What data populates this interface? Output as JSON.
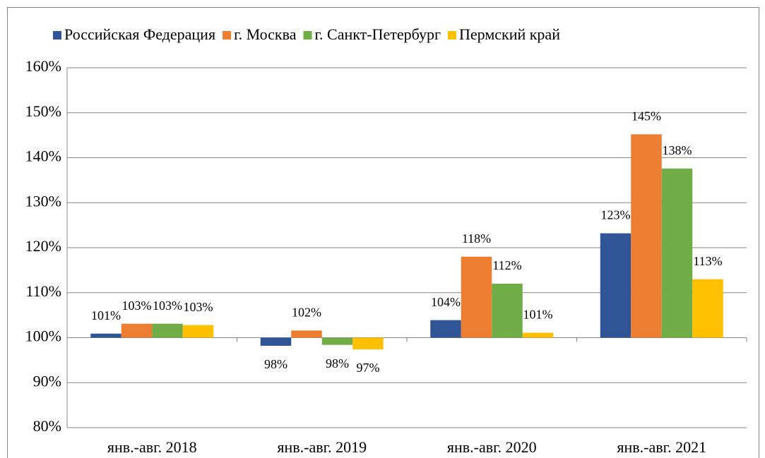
{
  "chart_data": {
    "type": "bar",
    "categories": [
      "янв.-авг. 2018",
      "янв.-авг. 2019",
      "янв.-авг. 2020",
      "янв.-авг. 2021"
    ],
    "series": [
      {
        "name": "Российская Федерация",
        "color": "#2f5597",
        "values": [
          100.9,
          98.2,
          103.9,
          123.2
        ],
        "value_labels": [
          "101%",
          "98%",
          "104%",
          "123%"
        ]
      },
      {
        "name": "г. Москва",
        "color": "#ed7d31",
        "values": [
          103.1,
          101.6,
          118.0,
          145.2
        ],
        "value_labels": [
          "103%",
          "102%",
          "118%",
          "145%"
        ]
      },
      {
        "name": "г. Санкт-Петербург",
        "color": "#70ad47",
        "values": [
          103.1,
          98.4,
          112.0,
          137.6
        ],
        "value_labels": [
          "103%",
          "98%",
          "112%",
          "138%"
        ]
      },
      {
        "name": "Пермский край",
        "color": "#ffc000",
        "values": [
          102.8,
          97.4,
          101.1,
          113.0
        ],
        "value_labels": [
          "103%",
          "97%",
          "101%",
          "113%"
        ]
      }
    ],
    "ylim": [
      80,
      160
    ],
    "yticks": [
      {
        "value": 80,
        "label": "80%"
      },
      {
        "value": 90,
        "label": "90%"
      },
      {
        "value": 100,
        "label": "100%"
      },
      {
        "value": 110,
        "label": "110%"
      },
      {
        "value": 120,
        "label": "120%"
      },
      {
        "value": 130,
        "label": "130%"
      },
      {
        "value": 140,
        "label": "140%"
      },
      {
        "value": 150,
        "label": "150%"
      },
      {
        "value": 160,
        "label": "160%"
      }
    ],
    "baseline": 100,
    "grid": true,
    "legend": "top"
  }
}
